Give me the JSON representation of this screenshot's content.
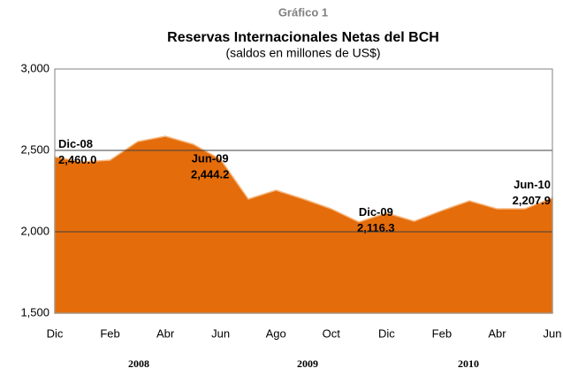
{
  "chart_data": {
    "type": "area",
    "label": "Gráfico 1",
    "title": "Reservas Internacionales Netas del BCH",
    "subtitle": "(saldos en millones de US$)",
    "categories": [
      "Dic",
      null,
      "Feb",
      null,
      "Abr",
      null,
      "Jun",
      null,
      "Ago",
      null,
      "Oct",
      null,
      "Dic",
      null,
      "Feb",
      null,
      "Abr",
      null,
      "Jun"
    ],
    "year_labels": [
      "2008",
      "2009",
      "2010"
    ],
    "series": [
      {
        "color": "#e46c0a",
        "values": [
          2460.0,
          2429,
          2440,
          2554,
          2587,
          2538,
          2444.2,
          2201,
          2255,
          2201,
          2141,
          2060,
          2116.3,
          2065,
          2130,
          2190,
          2141,
          2141,
          2207.9
        ],
        "value_labels": [
          "2,460.0",
          null,
          null,
          null,
          null,
          null,
          "2,444.2",
          null,
          null,
          null,
          null,
          null,
          "2,116.3",
          null,
          null,
          null,
          null,
          null,
          "2,207.9"
        ],
        "point_labels": [
          "Dic-08",
          null,
          null,
          null,
          null,
          null,
          "Jun-09",
          null,
          null,
          null,
          null,
          null,
          "Dic-09",
          null,
          null,
          null,
          null,
          null,
          "Jun-10"
        ]
      }
    ],
    "ylim": [
      1500,
      3000
    ],
    "yticks": [
      {
        "value": 1500,
        "label": "1,500"
      },
      {
        "value": 2000,
        "label": "2,000"
      },
      {
        "value": 2500,
        "label": "2,500"
      },
      {
        "value": 3000,
        "label": "3,000"
      }
    ],
    "grid": true
  }
}
